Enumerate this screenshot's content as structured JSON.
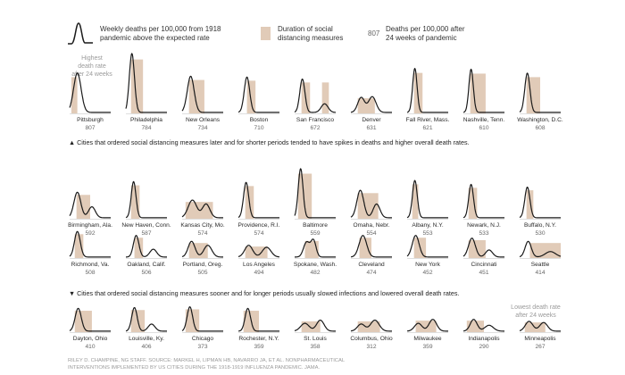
{
  "legend": {
    "line_label_1": "Weekly deaths per 100,000 from 1918",
    "line_label_2": "pandemic above the expected rate",
    "box_label_1": "Duration of social",
    "box_label_2": "distancing measures",
    "value_sample": "807",
    "value_label_1": "Deaths per 100,000 after",
    "value_label_2": "24 weeks of pandemic"
  },
  "annotations": {
    "highest_1": "Highest",
    "highest_2": "death rate",
    "highest_3": "after 24 weeks",
    "lowest_1": "Lowest death rate",
    "lowest_2": "after 24 weeks",
    "note_later": "▲ Cities that ordered social distancing measures later and for shorter periods tended to have spikes in deaths and higher overall death rates.",
    "note_sooner": "▼ Cities that ordered social distancing measures sooner and for longer periods usually slowed infections and lowered overall death rates."
  },
  "credit": {
    "line_1": "RILEY D. CHAMPINE, NG STAFF. SOURCE: MARKEL H, LIPMAN HB, NAVARRO JA, ET AL. NONPHARMACEUTICAL",
    "line_2": "INTERVENTIONS IMPLEMENTED BY US CITIES DURING THE 1918-1919 INFLUENZA PANDEMIC. JAMA."
  },
  "colors": {
    "line": "#1a1a1a",
    "box": "#e1cbb8",
    "text": "#2a2a2a",
    "value": "#666666",
    "muted": "#9a9a9a"
  },
  "chart_data": {
    "type": "line",
    "title": "Weekly deaths per 100,000 from 1918 pandemic above the expected rate",
    "x_unit": "week of pandemic",
    "xlim": [
      0,
      24
    ],
    "y_unit": "weekly excess deaths per 100,000",
    "value_label": "Deaths per 100,000 after 24 weeks of pandemic",
    "cities": [
      {
        "name": "Pittsburgh",
        "value": 807,
        "distancing": [
          [
            1,
            4.5
          ]
        ],
        "peaks": [
          {
            "w": 4.5,
            "h": 100,
            "s": 2.2
          }
        ]
      },
      {
        "name": "Philadelphia",
        "value": 784,
        "distancing": [
          [
            3,
            10
          ]
        ],
        "peaks": [
          {
            "w": 3.5,
            "h": 150,
            "s": 1.5
          }
        ]
      },
      {
        "name": "New Orleans",
        "value": 734,
        "distancing": [
          [
            4,
            13
          ]
        ],
        "peaks": [
          {
            "w": 5,
            "h": 92,
            "s": 2.0
          }
        ]
      },
      {
        "name": "Boston",
        "value": 710,
        "distancing": [
          [
            5,
            10
          ]
        ],
        "peaks": [
          {
            "w": 5,
            "h": 90,
            "s": 1.6
          }
        ]
      },
      {
        "name": "San Francisco",
        "value": 672,
        "distancing": [
          [
            4,
            9
          ],
          [
            16,
            20
          ]
        ],
        "peaks": [
          {
            "w": 4.5,
            "h": 85,
            "s": 1.5
          },
          {
            "w": 17.5,
            "h": 22,
            "s": 2.0
          }
        ]
      },
      {
        "name": "Denver",
        "value": 631,
        "distancing": [
          [
            4,
            14
          ]
        ],
        "peaks": [
          {
            "w": 6,
            "h": 38,
            "s": 2.0
          },
          {
            "w": 12.5,
            "h": 40,
            "s": 2.2
          }
        ]
      },
      {
        "name": "Fall River, Mass.",
        "value": 621,
        "distancing": [
          [
            4,
            9
          ]
        ],
        "peaks": [
          {
            "w": 4.5,
            "h": 112,
            "s": 1.3
          }
        ]
      },
      {
        "name": "Nashville, Tenn.",
        "value": 610,
        "distancing": [
          [
            4,
            13
          ]
        ],
        "peaks": [
          {
            "w": 4.5,
            "h": 110,
            "s": 1.3
          }
        ]
      },
      {
        "name": "Washington, D.C.",
        "value": 608,
        "distancing": [
          [
            4,
            12
          ]
        ],
        "peaks": [
          {
            "w": 4.5,
            "h": 100,
            "s": 1.5
          }
        ]
      },
      {
        "name": "Birmingham, Ala.",
        "value": 592,
        "distancing": [
          [
            4,
            12
          ]
        ],
        "peaks": [
          {
            "w": 4.5,
            "h": 65,
            "s": 2.0
          },
          {
            "w": 13,
            "h": 28,
            "s": 2.0
          }
        ]
      },
      {
        "name": "New Haven, Conn.",
        "value": 587,
        "distancing": [
          [
            3,
            8
          ]
        ],
        "peaks": [
          {
            "w": 4.5,
            "h": 92,
            "s": 1.4
          }
        ]
      },
      {
        "name": "Kansas City, Mo.",
        "value": 574,
        "distancing": [
          [
            2,
            18
          ]
        ],
        "peaks": [
          {
            "w": 6,
            "h": 45,
            "s": 2.5
          },
          {
            "w": 14,
            "h": 35,
            "s": 2.2
          }
        ]
      },
      {
        "name": "Providence, R.I.",
        "value": 574,
        "distancing": [
          [
            4,
            9
          ]
        ],
        "peaks": [
          {
            "w": 4.5,
            "h": 90,
            "s": 1.5
          }
        ]
      },
      {
        "name": "Baltimore",
        "value": 559,
        "distancing": [
          [
            2,
            10
          ]
        ],
        "peaks": [
          {
            "w": 3.5,
            "h": 125,
            "s": 1.4
          }
        ]
      },
      {
        "name": "Omaha, Nebr.",
        "value": 554,
        "distancing": [
          [
            4,
            16
          ]
        ],
        "peaks": [
          {
            "w": 5.5,
            "h": 70,
            "s": 2.0
          },
          {
            "w": 15,
            "h": 35,
            "s": 2.0
          }
        ]
      },
      {
        "name": "Albany, N.Y.",
        "value": 553,
        "distancing": [
          [
            3,
            6.5
          ]
        ],
        "peaks": [
          {
            "w": 4.5,
            "h": 95,
            "s": 1.4
          }
        ]
      },
      {
        "name": "Newark, N.J.",
        "value": 533,
        "distancing": [
          [
            3,
            8
          ]
        ],
        "peaks": [
          {
            "w": 4.5,
            "h": 85,
            "s": 1.4
          }
        ]
      },
      {
        "name": "Buffalo, N.Y.",
        "value": 530,
        "distancing": [
          [
            4,
            8
          ]
        ],
        "peaks": [
          {
            "w": 4.5,
            "h": 78,
            "s": 1.5
          }
        ]
      },
      {
        "name": "Richmond, Va.",
        "value": 508,
        "distancing": [
          [
            3,
            8
          ]
        ],
        "peaks": [
          {
            "w": 4.5,
            "h": 65,
            "s": 1.7
          }
        ]
      },
      {
        "name": "Oakland, Calif.",
        "value": 506,
        "distancing": [
          [
            5,
            10
          ]
        ],
        "peaks": [
          {
            "w": 6,
            "h": 55,
            "s": 1.6
          },
          {
            "w": 16,
            "h": 20,
            "s": 2.0
          }
        ]
      },
      {
        "name": "Portland, Oreg.",
        "value": 505,
        "distancing": [
          [
            4,
            15
          ]
        ],
        "peaks": [
          {
            "w": 5.5,
            "h": 40,
            "s": 2.0
          },
          {
            "w": 15,
            "h": 30,
            "s": 2.3
          }
        ]
      },
      {
        "name": "Los Angeles",
        "value": 494,
        "distancing": [
          [
            4,
            17
          ]
        ],
        "peaks": [
          {
            "w": 6,
            "h": 30,
            "s": 2.3
          },
          {
            "w": 16.5,
            "h": 25,
            "s": 2.5
          }
        ]
      },
      {
        "name": "Spokane, Wash.",
        "value": 482,
        "distancing": [
          [
            6,
            14
          ]
        ],
        "peaks": [
          {
            "w": 7,
            "h": 38,
            "s": 1.8
          },
          {
            "w": 11,
            "h": 42,
            "s": 1.5
          }
        ]
      },
      {
        "name": "Cleveland",
        "value": 474,
        "distancing": [
          [
            5,
            12
          ]
        ],
        "peaks": [
          {
            "w": 7,
            "h": 55,
            "s": 2.2
          }
        ]
      },
      {
        "name": "New York",
        "value": 452,
        "distancing": [
          [
            4,
            11
          ]
        ],
        "peaks": [
          {
            "w": 5,
            "h": 55,
            "s": 2.0
          }
        ]
      },
      {
        "name": "Cincinnati",
        "value": 451,
        "distancing": [
          [
            3,
            13
          ]
        ],
        "peaks": [
          {
            "w": 5,
            "h": 48,
            "s": 2.0
          },
          {
            "w": 15,
            "h": 18,
            "s": 2.0
          }
        ]
      },
      {
        "name": "Seattle",
        "value": 414,
        "distancing": [
          [
            6,
            24
          ]
        ],
        "peaks": [
          {
            "w": 5,
            "h": 40,
            "s": 1.8
          },
          {
            "w": 18,
            "h": 14,
            "s": 3.0
          }
        ]
      },
      {
        "name": "Dayton, Ohio",
        "value": 410,
        "distancing": [
          [
            3,
            13
          ]
        ],
        "peaks": [
          {
            "w": 5,
            "h": 58,
            "s": 1.8
          }
        ]
      },
      {
        "name": "Louisville, Ky.",
        "value": 406,
        "distancing": [
          [
            3,
            11
          ]
        ],
        "peaks": [
          {
            "w": 5,
            "h": 60,
            "s": 1.6
          },
          {
            "w": 15,
            "h": 18,
            "s": 2.0
          }
        ]
      },
      {
        "name": "Chicago",
        "value": 373,
        "distancing": [
          [
            2,
            10
          ]
        ],
        "peaks": [
          {
            "w": 4.5,
            "h": 62,
            "s": 1.6
          }
        ]
      },
      {
        "name": "Rochester, N.Y.",
        "value": 359,
        "distancing": [
          [
            3,
            12
          ]
        ],
        "peaks": [
          {
            "w": 5.5,
            "h": 58,
            "s": 1.6
          }
        ]
      },
      {
        "name": "St. Louis",
        "value": 358,
        "distancing": [
          [
            4,
            15
          ]
        ],
        "peaks": [
          {
            "w": 6,
            "h": 20,
            "s": 2.5
          },
          {
            "w": 15,
            "h": 28,
            "s": 2.2
          }
        ]
      },
      {
        "name": "Columbus, Ohio",
        "value": 312,
        "distancing": [
          [
            4,
            17
          ]
        ],
        "peaks": [
          {
            "w": 6,
            "h": 18,
            "s": 2.2
          },
          {
            "w": 14,
            "h": 28,
            "s": 2.5
          }
        ]
      },
      {
        "name": "Milwaukee",
        "value": 359,
        "distancing": [
          [
            5,
            17
          ]
        ],
        "peaks": [
          {
            "w": 6.5,
            "h": 20,
            "s": 2.2
          },
          {
            "w": 15,
            "h": 30,
            "s": 2.2
          }
        ]
      },
      {
        "name": "Indianapolis",
        "value": 290,
        "distancing": [
          [
            2,
            12
          ]
        ],
        "peaks": [
          {
            "w": 6,
            "h": 30,
            "s": 2.0
          },
          {
            "w": 15,
            "h": 15,
            "s": 2.5
          }
        ]
      },
      {
        "name": "Minneapolis",
        "value": 267,
        "distancing": [
          [
            3,
            15
          ]
        ],
        "peaks": [
          {
            "w": 5.5,
            "h": 25,
            "s": 2.2
          },
          {
            "w": 14,
            "h": 22,
            "s": 2.3
          }
        ]
      }
    ]
  }
}
